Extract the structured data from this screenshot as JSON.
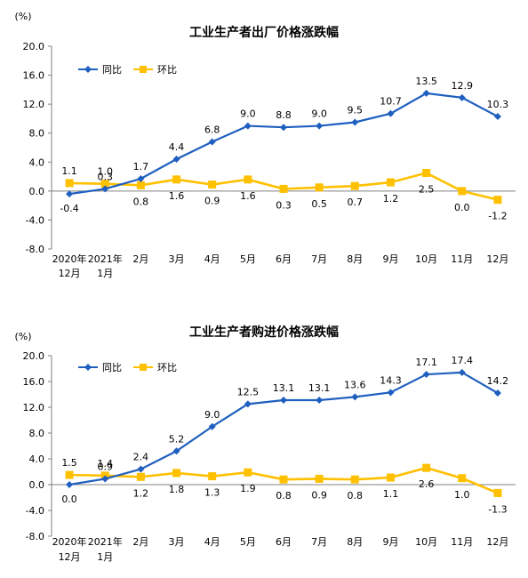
{
  "chart_data": [
    {
      "type": "line",
      "title": "工业生产者出厂价格涨跌幅",
      "unit": "(%)",
      "categories": [
        [
          "2020年",
          "12月"
        ],
        [
          "2021年",
          "1月"
        ],
        [
          "2月"
        ],
        [
          "3月"
        ],
        [
          "4月"
        ],
        [
          "5月"
        ],
        [
          "6月"
        ],
        [
          "7月"
        ],
        [
          "8月"
        ],
        [
          "9月"
        ],
        [
          "10月"
        ],
        [
          "11月"
        ],
        [
          "12月"
        ]
      ],
      "yticks": [
        "20.0",
        "16.0",
        "12.0",
        "8.0",
        "4.0",
        "0.0",
        "-4.0",
        "-8.0"
      ],
      "ylim": [
        -8,
        20
      ],
      "legend_position": "top-left",
      "grid": false,
      "series": [
        {
          "name": "同比",
          "color": "#1f5fbf",
          "marker": "diamond",
          "values": [
            -0.4,
            0.3,
            1.7,
            4.4,
            6.8,
            9.0,
            8.8,
            9.0,
            9.5,
            10.7,
            13.5,
            12.9,
            10.3
          ],
          "labels": [
            "-0.4",
            "0.3",
            "1.7",
            "4.4",
            "6.8",
            "9.0",
            "8.8",
            "9.0",
            "9.5",
            "10.7",
            "13.5",
            "12.9",
            "10.3"
          ]
        },
        {
          "name": "环比",
          "color": "#ffc000",
          "marker": "square",
          "values": [
            1.1,
            1.0,
            0.8,
            1.6,
            0.9,
            1.6,
            0.3,
            0.5,
            0.7,
            1.2,
            2.5,
            0.0,
            -1.2
          ],
          "labels": [
            "1.1",
            "1.0",
            "0.8",
            "1.6",
            "0.9",
            "1.6",
            "0.3",
            "0.5",
            "0.7",
            "1.2",
            "2.5",
            "0.0",
            "-1.2"
          ]
        }
      ]
    },
    {
      "type": "line",
      "title": "工业生产者购进价格涨跌幅",
      "unit": "(%)",
      "categories": [
        [
          "2020年",
          "12月"
        ],
        [
          "2021年",
          "1月"
        ],
        [
          "2月"
        ],
        [
          "3月"
        ],
        [
          "4月"
        ],
        [
          "5月"
        ],
        [
          "6月"
        ],
        [
          "7月"
        ],
        [
          "8月"
        ],
        [
          "9月"
        ],
        [
          "10月"
        ],
        [
          "11月"
        ],
        [
          "12月"
        ]
      ],
      "yticks": [
        "20.0",
        "16.0",
        "12.0",
        "8.0",
        "4.0",
        "0.0",
        "-4.0",
        "-8.0"
      ],
      "ylim": [
        -8,
        20
      ],
      "legend_position": "top-left",
      "grid": false,
      "series": [
        {
          "name": "同比",
          "color": "#1f5fbf",
          "marker": "diamond",
          "values": [
            0.0,
            0.9,
            2.4,
            5.2,
            9.0,
            12.5,
            13.1,
            13.1,
            13.6,
            14.3,
            17.1,
            17.4,
            14.2
          ],
          "labels": [
            "0.0",
            "0.9",
            "2.4",
            "5.2",
            "9.0",
            "12.5",
            "13.1",
            "13.1",
            "13.6",
            "14.3",
            "17.1",
            "17.4",
            "14.2"
          ]
        },
        {
          "name": "环比",
          "color": "#ffc000",
          "marker": "square",
          "values": [
            1.5,
            1.4,
            1.2,
            1.8,
            1.3,
            1.9,
            0.8,
            0.9,
            0.8,
            1.1,
            2.6,
            1.0,
            -1.3
          ],
          "labels": [
            "1.5",
            "1.4",
            "1.2",
            "1.8",
            "1.3",
            "1.9",
            "0.8",
            "0.9",
            "0.8",
            "1.1",
            "2.6",
            "1.0",
            "-1.3"
          ]
        }
      ]
    }
  ]
}
